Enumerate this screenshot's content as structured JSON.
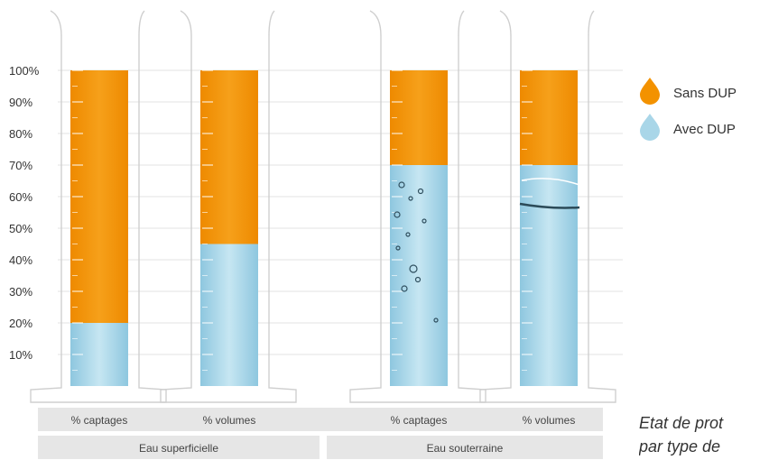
{
  "chart_data": {
    "type": "bar",
    "stacked": true,
    "percent": true,
    "categories": [
      "% captages",
      "% volumes",
      "% captages",
      "% volumes"
    ],
    "groups": [
      {
        "label": "Eau superficielle",
        "categories": [
          0,
          1
        ]
      },
      {
        "label": "Eau souterraine",
        "categories": [
          2,
          3
        ]
      }
    ],
    "series": [
      {
        "name": "Avec DUP",
        "color": "#a9d6e8",
        "values": [
          20,
          45,
          70,
          70
        ]
      },
      {
        "name": "Sans DUP",
        "color": "#f39200",
        "values": [
          80,
          55,
          30,
          30
        ]
      }
    ],
    "yticks": [
      "10%",
      "20%",
      "30%",
      "40%",
      "50%",
      "60%",
      "70%",
      "80%",
      "90%",
      "100%"
    ],
    "ylim": [
      0,
      100
    ],
    "grid": true,
    "legend_position": "right",
    "caption_lines": [
      "Etat de prot",
      "par type de"
    ]
  }
}
